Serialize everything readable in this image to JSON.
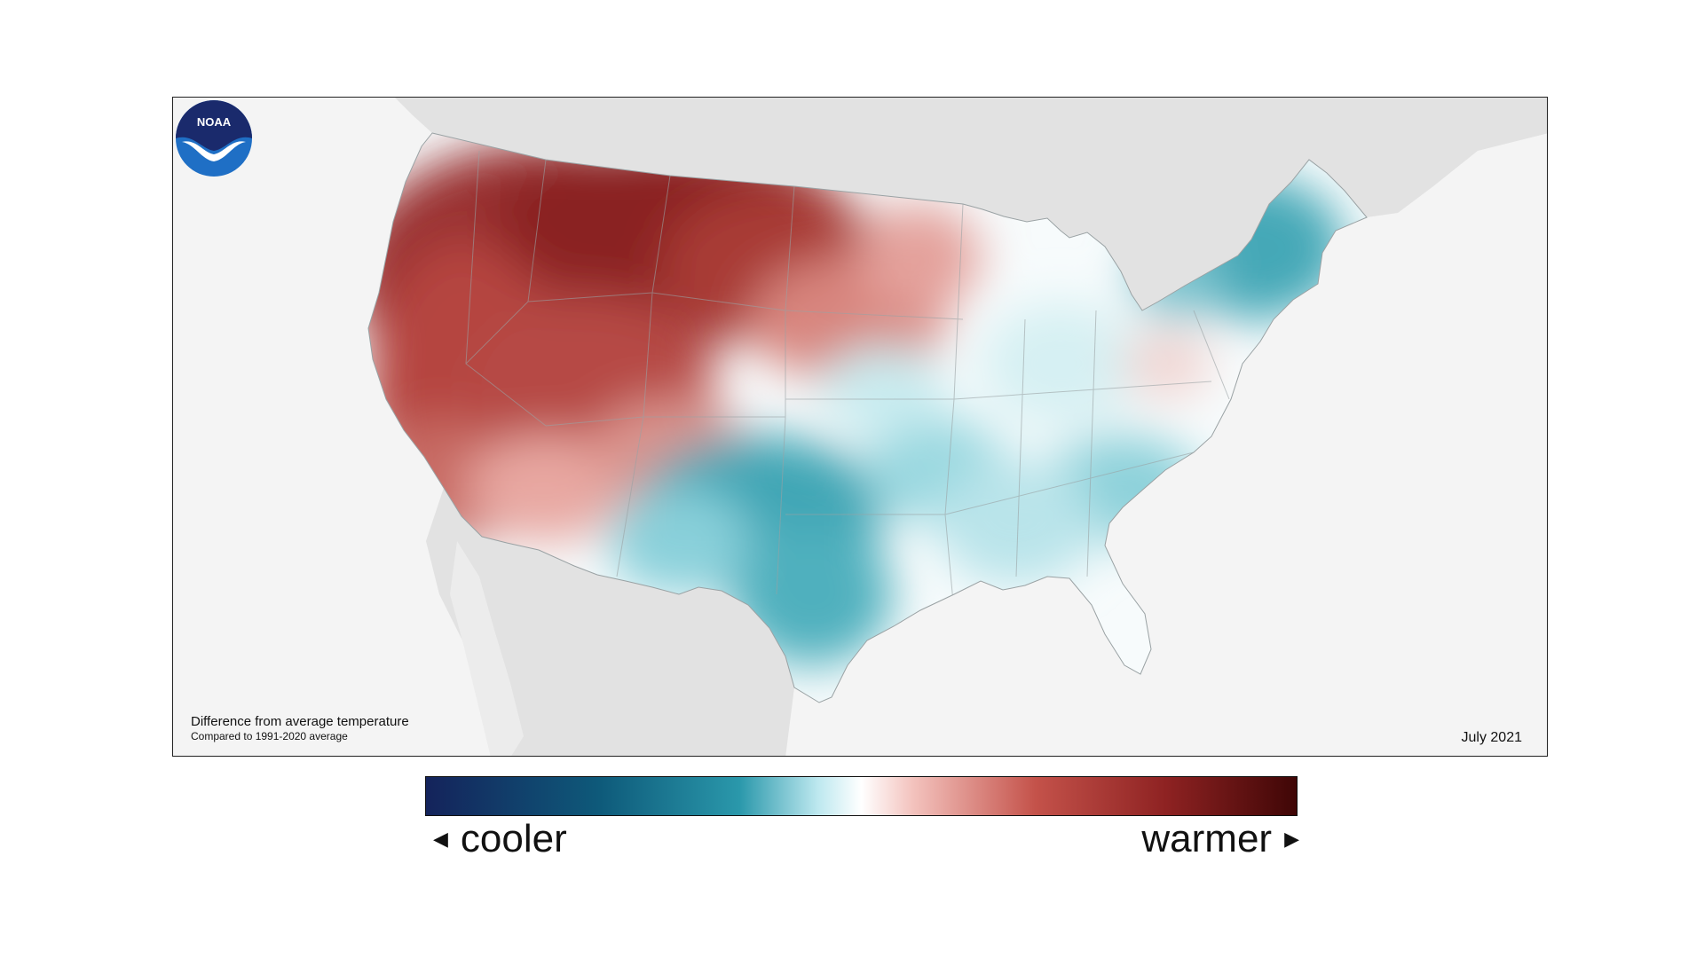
{
  "map": {
    "caption_title": "Difference from average temperature",
    "caption_subtitle": "Compared to 1991-2020 average",
    "date": "July 2021",
    "logo_text": "NOAA"
  },
  "legend": {
    "cooler_label": "cooler",
    "warmer_label": "warmer",
    "left_arrow": "◀",
    "right_arrow": "▶",
    "gradient_stops": [
      "#14235b",
      "#0e5a7a",
      "#2a98ab",
      "#bde8ef",
      "#ffffff",
      "#f3c2bd",
      "#c4524a",
      "#8e2222",
      "#3f0606"
    ]
  },
  "colors": {
    "ocean": "#f4f4f4",
    "neighbor_land": "#e2e2e2",
    "warm_strong": "#8e2a2a",
    "warm_mid": "#c35550",
    "warm_light": "#f2c6c2",
    "cool_light": "#cdeef2",
    "cool_mid": "#5cb9c6",
    "cool_strong": "#2a95a6",
    "noaa_blue": "#1f6fc5",
    "noaa_navy": "#1a2a6c"
  }
}
